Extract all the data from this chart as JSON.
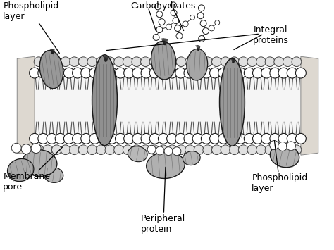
{
  "bg_color": "#ffffff",
  "head_fc": "#ffffff",
  "head_ec": "#1a1a1a",
  "head_r": 7.5,
  "protein_fc": "#b0b0b0",
  "protein_ec": "#1a1a1a",
  "tail_color": "#333333",
  "text_color": "#000000",
  "membrane_interior_color": "#e8e8e8",
  "labels": {
    "phospholipid_top": "Phospholipid\nlayer",
    "carbohydrates": "Carbohydrates",
    "integral": "Integral\nproteins",
    "membrane_pore": "Membrane\npore",
    "peripheral": "Peripheral\nprotein",
    "phospholipid_bot": "Phospholipid\nlayer"
  }
}
